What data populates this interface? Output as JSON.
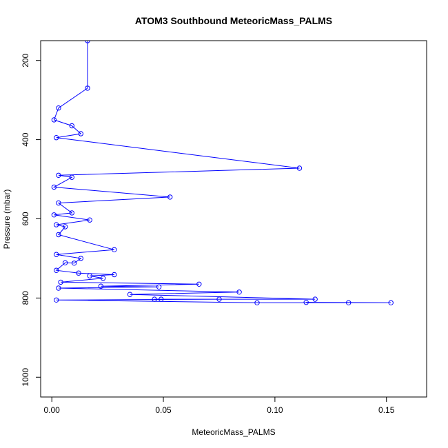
{
  "chart_data": {
    "type": "line",
    "title": "ATOM3 Southbound MeteoricMass_PALMS",
    "xlabel": "MeteoricMass_PALMS",
    "ylabel": "Pressure (mbar)",
    "xlim": [
      -0.005,
      0.168
    ],
    "ylim": [
      1050,
      150
    ],
    "y_axis_inverted": true,
    "x_ticks": [
      0.0,
      0.05,
      0.1,
      0.15
    ],
    "x_tick_labels": [
      "0.00",
      "0.05",
      "0.10",
      "0.15"
    ],
    "y_ticks": [
      200,
      400,
      600,
      800,
      1000
    ],
    "y_tick_labels": [
      "200",
      "400",
      "600",
      "800",
      "1000"
    ],
    "grid": false,
    "marker": "open-circle",
    "colors": {
      "series": "#0000ff",
      "axis": "#000000",
      "background": "#ffffff"
    },
    "series": [
      {
        "values": [
          [
            0.016,
            150
          ],
          [
            0.016,
            270
          ],
          [
            0.003,
            320
          ],
          [
            0.001,
            350
          ],
          [
            0.009,
            365
          ],
          [
            0.013,
            385
          ],
          [
            0.002,
            395
          ],
          [
            0.111,
            472
          ],
          [
            0.003,
            490
          ],
          [
            0.009,
            495
          ],
          [
            0.001,
            520
          ],
          [
            0.053,
            545
          ],
          [
            0.003,
            560
          ],
          [
            0.009,
            585
          ],
          [
            0.001,
            590
          ],
          [
            0.017,
            603
          ],
          [
            0.002,
            615
          ],
          [
            0.006,
            620
          ],
          [
            0.003,
            640
          ],
          [
            0.028,
            678
          ],
          [
            0.002,
            690
          ],
          [
            0.013,
            700
          ],
          [
            0.01,
            712
          ],
          [
            0.006,
            711
          ],
          [
            0.002,
            730
          ],
          [
            0.012,
            737
          ],
          [
            0.028,
            741
          ],
          [
            0.017,
            744
          ],
          [
            0.023,
            750
          ],
          [
            0.004,
            760
          ],
          [
            0.066,
            765
          ],
          [
            0.022,
            770
          ],
          [
            0.048,
            772
          ],
          [
            0.003,
            775
          ],
          [
            0.084,
            785
          ],
          [
            0.035,
            791
          ],
          [
            0.118,
            803
          ],
          [
            0.046,
            803
          ],
          [
            0.049,
            803
          ],
          [
            0.075,
            803
          ],
          [
            0.002,
            805
          ],
          [
            0.092,
            812
          ],
          [
            0.152,
            812
          ],
          [
            0.114,
            811
          ],
          [
            0.133,
            812
          ]
        ]
      }
    ]
  }
}
